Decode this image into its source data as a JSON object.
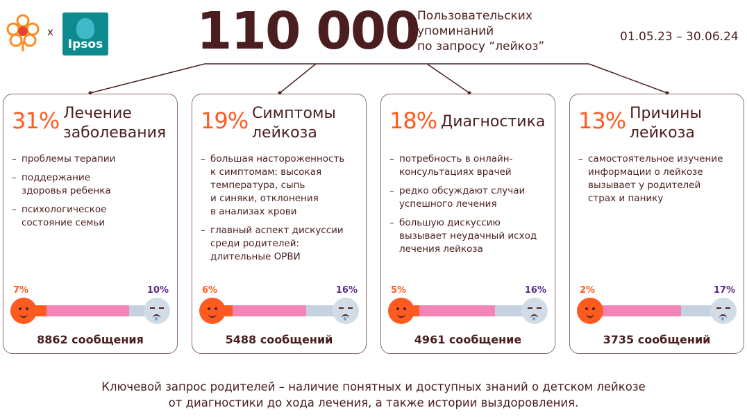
{
  "header": {
    "logo_x": "x",
    "partner_logo": "Ipsos",
    "big_number": "110 000",
    "caption": "Пользовательских\nупоминаний\nпо запросу “лейкоз”",
    "date_range": "01.05.23 – 30.06.24"
  },
  "colors": {
    "accent": "#ff5a1f",
    "dark": "#4a1e1e",
    "negative": "#5a2a8a",
    "pink": "#f285b6",
    "blue_grey": "#c6d2e0"
  },
  "cards": [
    {
      "pct": "31%",
      "title": "Лечение\nзаболевания",
      "bullets": [
        "проблемы терапии",
        "поддержание\nздоровья ребенка",
        "психологическое\nсостояние семьи"
      ],
      "positive": "7%",
      "negative": "10%",
      "positive_value": 7,
      "negative_value": 10,
      "count": "8862 сообщения"
    },
    {
      "pct": "19%",
      "title": "Симптомы\nлейкоза",
      "bullets": [
        "большая настороженность\nк симптомам: высокая\nтемпература, сыпь\nи синяки, отклонения\nв анализах крови",
        "главный аспект дискуссии\nсреди родителей:\nдлительные ОРВИ"
      ],
      "positive": "6%",
      "negative": "16%",
      "positive_value": 6,
      "negative_value": 16,
      "count": "5488 сообщений"
    },
    {
      "pct": "18%",
      "title": "Диагностика",
      "bullets": [
        "потребность в онлайн-\nконсультациях врачей",
        "редко обсуждают случаи\nуспешного лечения",
        "большую дискуссию\nвызывает неудачный исход\nлечения лейкоза"
      ],
      "positive": "5%",
      "negative": "16%",
      "positive_value": 5,
      "negative_value": 16,
      "count": "4961 сообщение"
    },
    {
      "pct": "13%",
      "title": "Причины\nлейкоза",
      "bullets": [
        "самостоятельное изучение\nинформации о лейкозе\nвызывает у родителей\nстрах и панику"
      ],
      "positive": "2%",
      "negative": "17%",
      "positive_value": 2,
      "negative_value": 17,
      "count": "3735 сообщений"
    }
  ],
  "footer": {
    "text": "Ключевой запрос родителей – наличие понятных и доступных знаний о детском лейкозе\nот диагностики до хода лечения, а также истории выздоровления."
  }
}
